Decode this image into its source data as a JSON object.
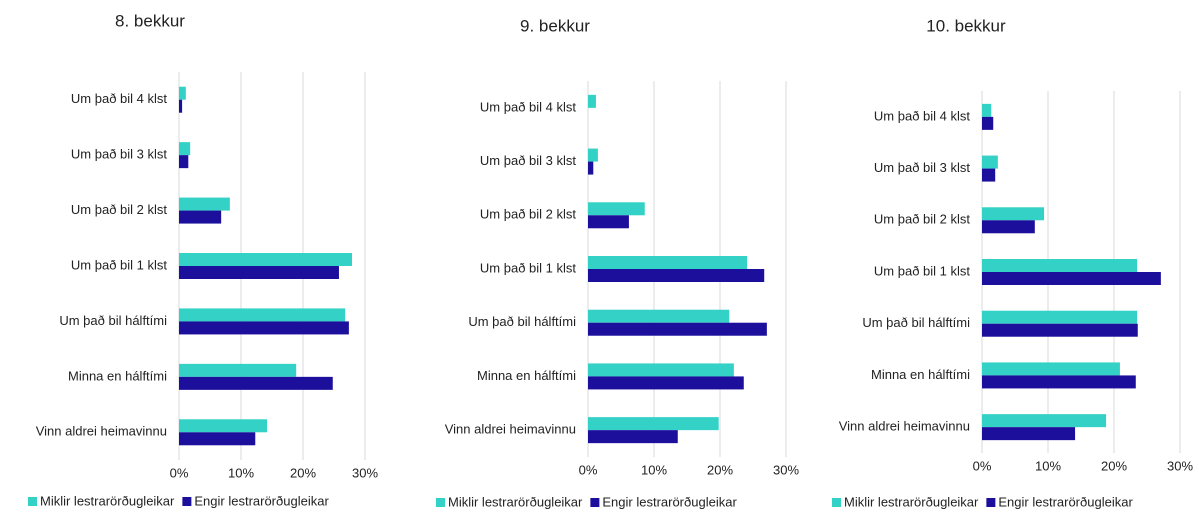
{
  "chart_data": [
    {
      "type": "bar",
      "orientation": "horizontal",
      "title": "8. bekkur",
      "categories": [
        "Um það bil 4 klst",
        "Um það bil 3 klst",
        "Um það bil 2 klst",
        "Um það bil 1 klst",
        "Um það bil hálftími",
        "Minna en hálftími",
        "Vinn aldrei heimavinnu"
      ],
      "series": [
        {
          "name": "Miklir lestrarörðugleikar",
          "color": "#33d1c6",
          "values": [
            1.1,
            1.8,
            8.2,
            27.9,
            26.8,
            18.9,
            14.2
          ]
        },
        {
          "name": "Engir lestrarörðugleikar",
          "color": "#1c0f9c",
          "values": [
            0.5,
            1.5,
            6.8,
            25.8,
            27.4,
            24.8,
            12.3
          ]
        }
      ],
      "xlim": [
        0,
        30
      ],
      "xticks": [
        {
          "value": 0,
          "label": "0%"
        },
        {
          "value": 10,
          "label": "10%"
        },
        {
          "value": 20,
          "label": "20%"
        },
        {
          "value": 30,
          "label": "30%"
        }
      ],
      "grid": true,
      "legend": "bottom"
    },
    {
      "type": "bar",
      "orientation": "horizontal",
      "title": "9. bekkur",
      "categories": [
        "Um það bil 4 klst",
        "Um það bil 3 klst",
        "Um það bil 2 klst",
        "Um það bil 1 klst",
        "Um það bil hálftími",
        "Minna en hálftími",
        "Vinn aldrei heimavinnu"
      ],
      "series": [
        {
          "name": "Miklir lestrarörðugleikar",
          "color": "#33d1c6",
          "values": [
            1.2,
            1.5,
            8.6,
            24.1,
            21.4,
            22.1,
            19.8
          ]
        },
        {
          "name": "Engir lestrarörðugleikar",
          "color": "#1c0f9c",
          "values": [
            0,
            0.8,
            6.2,
            26.7,
            27.1,
            23.6,
            13.6
          ]
        }
      ],
      "xlim": [
        0,
        30
      ],
      "xticks": [
        {
          "value": 0,
          "label": "0%"
        },
        {
          "value": 10,
          "label": "10%"
        },
        {
          "value": 20,
          "label": "20%"
        },
        {
          "value": 30,
          "label": "30%"
        }
      ],
      "grid": true,
      "legend": "bottom"
    },
    {
      "type": "bar",
      "orientation": "horizontal",
      "title": "10. bekkur",
      "categories": [
        "Um það bil 4 klst",
        "Um það bil 3 klst",
        "Um það bil 2 klst",
        "Um það bil 1 klst",
        "Um það bil hálftími",
        "Minna en hálftími",
        "Vinn aldrei heimavinnu"
      ],
      "series": [
        {
          "name": "Miklir lestrarörðugleikar",
          "color": "#33d1c6",
          "values": [
            1.4,
            2.4,
            9.4,
            23.5,
            23.5,
            20.9,
            18.8
          ]
        },
        {
          "name": "Engir lestrarörðugleikar",
          "color": "#1c0f9c",
          "values": [
            1.7,
            2.0,
            8.0,
            27.1,
            23.6,
            23.3,
            14.1
          ]
        }
      ],
      "xlim": [
        0,
        30
      ],
      "xticks": [
        {
          "value": 0,
          "label": "0%"
        },
        {
          "value": 10,
          "label": "10%"
        },
        {
          "value": 20,
          "label": "20%"
        },
        {
          "value": 30,
          "label": "30%"
        }
      ],
      "grid": true,
      "legend": "bottom"
    }
  ]
}
